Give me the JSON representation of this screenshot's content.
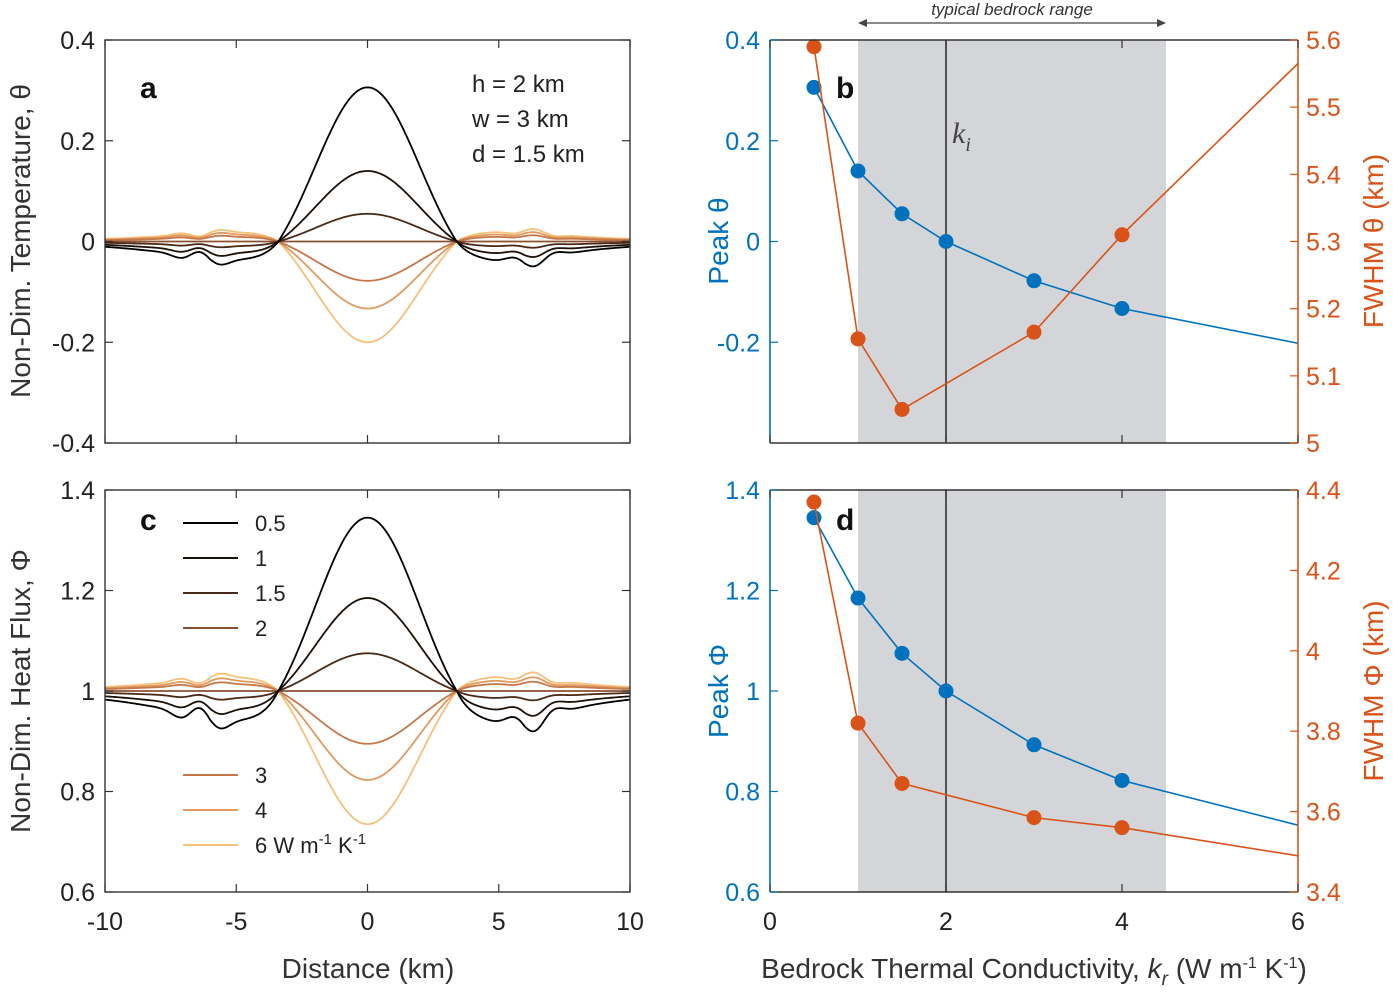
{
  "chart_data": [
    {
      "panel": "a",
      "type": "line",
      "xlabel": "",
      "ylabel": "Non-Dim. Temperature, θ",
      "xlim": [
        -10,
        10
      ],
      "ylim": [
        -0.4,
        0.4
      ],
      "xticks": [
        "",
        "",
        "",
        "",
        ""
      ],
      "yticks": [
        "-0.4",
        "-0.2",
        "0",
        "0.2",
        "0.4"
      ],
      "annotations": [
        "h = 2 km",
        "w =  3 km",
        "d = 1.5 km"
      ],
      "series": [
        {
          "name": "0.5",
          "color": "#000000",
          "peak": 0.306,
          "shoulder": -0.04
        },
        {
          "name": "1",
          "color": "#1c1008",
          "peak": 0.14,
          "shoulder": -0.025
        },
        {
          "name": "1.5",
          "color": "#4a2a16",
          "peak": 0.055,
          "shoulder": -0.01
        },
        {
          "name": "2",
          "color": "#8a5030",
          "peak": 0.0,
          "shoulder": 0.0
        },
        {
          "name": "3",
          "color": "#c4784a",
          "peak": -0.078,
          "shoulder": 0.01
        },
        {
          "name": "4",
          "color": "#e09a5e",
          "peak": -0.133,
          "shoulder": 0.015
        },
        {
          "name": "6",
          "color": "#f5c07a",
          "peak": -0.2,
          "shoulder": 0.02
        }
      ]
    },
    {
      "panel": "b",
      "type": "line",
      "xlabel": "",
      "ylabel_left": "Peak θ",
      "ylabel_right": "FWHM θ (km)",
      "xlim": [
        0,
        6
      ],
      "ylim_left": [
        -0.4,
        0.4
      ],
      "ylim_right": [
        5.0,
        5.6
      ],
      "xticks": [
        "",
        "",
        "",
        ""
      ],
      "yticks_left": [
        "-0.2",
        "0",
        "0.2",
        "0.4"
      ],
      "yticks_right": [
        "5",
        "5.1",
        "5.2",
        "5.3",
        "5.4",
        "5.5",
        "5.6"
      ],
      "shaded_range": [
        1,
        4.5
      ],
      "shaded_label": "typical bedrock range",
      "vline": 2,
      "vline_label_main": "k",
      "vline_label_sub": "i",
      "series": [
        {
          "name": "Peak θ",
          "color": "#0072BD",
          "axis": "left",
          "x": [
            0.5,
            1,
            1.5,
            2,
            3,
            4
          ],
          "y": [
            0.306,
            0.14,
            0.055,
            0.0,
            -0.078,
            -0.133
          ],
          "line_x": [
            0.5,
            1,
            1.5,
            2,
            3,
            4,
            6
          ],
          "line_y": [
            0.306,
            0.14,
            0.055,
            0.0,
            -0.078,
            -0.133,
            -0.202
          ]
        },
        {
          "name": "FWHM θ",
          "color": "#D95319",
          "axis": "right",
          "x": [
            0.5,
            1,
            1.5,
            3,
            4
          ],
          "y": [
            5.59,
            5.155,
            5.05,
            5.165,
            5.31
          ],
          "line_x": [
            0.5,
            1,
            1.5,
            3,
            4,
            6
          ],
          "line_y": [
            5.59,
            5.155,
            5.05,
            5.165,
            5.31,
            5.565
          ]
        }
      ]
    },
    {
      "panel": "c",
      "type": "line",
      "xlabel": "Distance (km)",
      "ylabel": "Non-Dim. Heat Flux, Φ",
      "xlim": [
        -10,
        10
      ],
      "ylim": [
        0.6,
        1.4
      ],
      "xticks": [
        "-10",
        "-5",
        "0",
        "5",
        "10"
      ],
      "yticks": [
        "0.6",
        "0.8",
        "1",
        "1.2",
        "1.4"
      ],
      "series": [
        {
          "name": "0.5",
          "color": "#000000",
          "peak": 1.345,
          "shoulder": 0.935
        },
        {
          "name": "1",
          "color": "#1c1008",
          "peak": 1.185,
          "shoulder": 0.96
        },
        {
          "name": "1.5",
          "color": "#4a2a16",
          "peak": 1.075,
          "shoulder": 0.985
        },
        {
          "name": "2",
          "color": "#8a5030",
          "peak": 1.0,
          "shoulder": 1.0
        },
        {
          "name": "3",
          "color": "#c4784a",
          "peak": 0.895,
          "shoulder": 1.015
        },
        {
          "name": "4",
          "color": "#e09a5e",
          "peak": 0.823,
          "shoulder": 1.022
        },
        {
          "name": "6 W m⁻¹ K⁻¹",
          "color": "#f5c07a",
          "peak": 0.735,
          "shoulder": 1.03
        }
      ]
    },
    {
      "panel": "d",
      "type": "line",
      "xlabel": "Bedrock Thermal Conductivity, kr (W m⁻¹ K⁻¹)",
      "xlabel_parts": [
        "Bedrock Thermal Conductivity, ",
        "k",
        "r",
        " (W m",
        "-1",
        " K",
        "-1",
        ")"
      ],
      "ylabel_left": "Peak Φ",
      "ylabel_right": "FWHM Φ (km)",
      "xlim": [
        0,
        6
      ],
      "ylim_left": [
        0.6,
        1.4
      ],
      "ylim_right": [
        3.4,
        4.4
      ],
      "xticks": [
        "0",
        "2",
        "4",
        "6"
      ],
      "yticks_left": [
        "0.6",
        "0.8",
        "1",
        "1.2",
        "1.4"
      ],
      "yticks_right": [
        "3.4",
        "3.6",
        "3.8",
        "4",
        "4.2",
        "4.4"
      ],
      "shaded_range": [
        1,
        4.5
      ],
      "vline": 2,
      "series": [
        {
          "name": "Peak Φ",
          "color": "#0072BD",
          "axis": "left",
          "x": [
            0.5,
            1,
            1.5,
            2,
            3,
            4
          ],
          "y": [
            1.345,
            1.185,
            1.075,
            1.0,
            0.893,
            0.822
          ],
          "line_x": [
            0.5,
            1,
            1.5,
            2,
            3,
            4,
            6
          ],
          "line_y": [
            1.345,
            1.185,
            1.075,
            1.0,
            0.893,
            0.822,
            0.733
          ]
        },
        {
          "name": "FWHM Φ",
          "color": "#D95319",
          "axis": "right",
          "x": [
            0.5,
            1,
            1.5,
            3,
            4
          ],
          "y": [
            4.37,
            3.82,
            3.67,
            3.585,
            3.56
          ],
          "line_x": [
            0.5,
            1,
            1.5,
            3,
            4,
            6
          ],
          "line_y": [
            4.37,
            3.82,
            3.67,
            3.585,
            3.56,
            3.49
          ]
        }
      ]
    }
  ],
  "labels": {
    "panel_a": "a",
    "panel_b": "b",
    "panel_c": "c",
    "panel_d": "d",
    "legend_unit_main": "6 W m",
    "legend_unit_exp1": "-1",
    "legend_unit_k": " K",
    "legend_unit_exp2": "-1"
  },
  "colors": {
    "blue": "#0072BD",
    "orange": "#D95319",
    "shade": "#d4d5d8"
  }
}
